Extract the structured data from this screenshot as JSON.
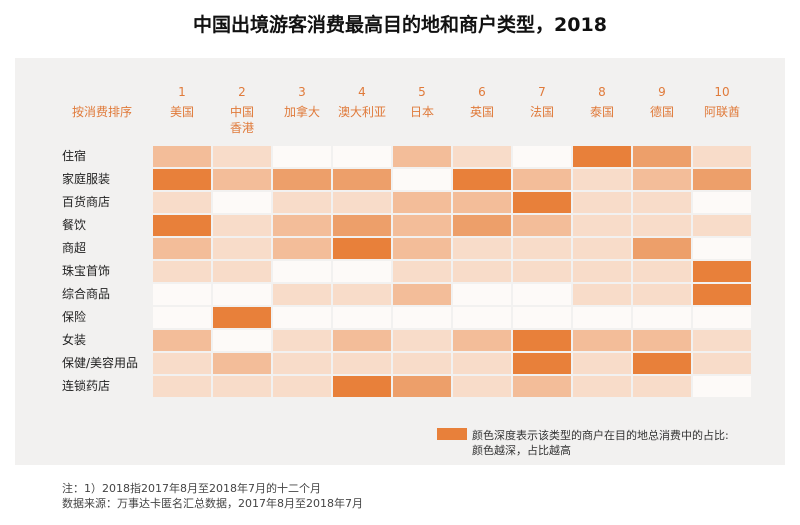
{
  "chart_data": {
    "type": "heatmap",
    "title": "中国出境游客消费最高目的地和商户类型，2018",
    "rank_label": "按消费排序",
    "ranks": [
      1,
      2,
      3,
      4,
      5,
      6,
      7,
      8,
      9,
      10
    ],
    "categories": [
      "美国",
      "中国\n香港",
      "加拿大",
      "澳大利亚",
      "日本",
      "英国",
      "法国",
      "泰国",
      "德国",
      "阿联酋"
    ],
    "rows": [
      "住宿",
      "家庭服装",
      "百货商店",
      "餐饮",
      "商超",
      "珠宝首饰",
      "综合商品",
      "保险",
      "女装",
      "保健/美容用品",
      "连锁药店"
    ],
    "values": [
      [
        2,
        1,
        0,
        0,
        2,
        1,
        0,
        4,
        3,
        1
      ],
      [
        4,
        2,
        3,
        3,
        0,
        4,
        2,
        1,
        2,
        3
      ],
      [
        1,
        0,
        1,
        1,
        2,
        2,
        4,
        1,
        1,
        0
      ],
      [
        4,
        1,
        2,
        3,
        2,
        3,
        2,
        1,
        1,
        1
      ],
      [
        2,
        1,
        2,
        4,
        2,
        1,
        1,
        1,
        3,
        0
      ],
      [
        1,
        1,
        0,
        0,
        1,
        1,
        1,
        1,
        1,
        4
      ],
      [
        0,
        0,
        1,
        1,
        2,
        0,
        0,
        1,
        1,
        4
      ],
      [
        0,
        4,
        0,
        0,
        0,
        0,
        0,
        0,
        0,
        0
      ],
      [
        2,
        0,
        1,
        2,
        1,
        2,
        4,
        2,
        2,
        1
      ],
      [
        1,
        2,
        1,
        1,
        1,
        1,
        4,
        1,
        4,
        1
      ],
      [
        1,
        1,
        1,
        4,
        3,
        1,
        2,
        1,
        1,
        0
      ]
    ],
    "zlim": [
      0,
      4
    ],
    "color": "#e8803a",
    "legend_text": [
      "颜色深度表示该类型的商户在目的地总消费中的占比:",
      "颜色越深，占比越高"
    ],
    "notes": [
      "注：1）2018指2017年8月至2018年7月的十二个月",
      "数据来源：万事达卡匿名汇总数据，2017年8月至2018年7月"
    ]
  }
}
